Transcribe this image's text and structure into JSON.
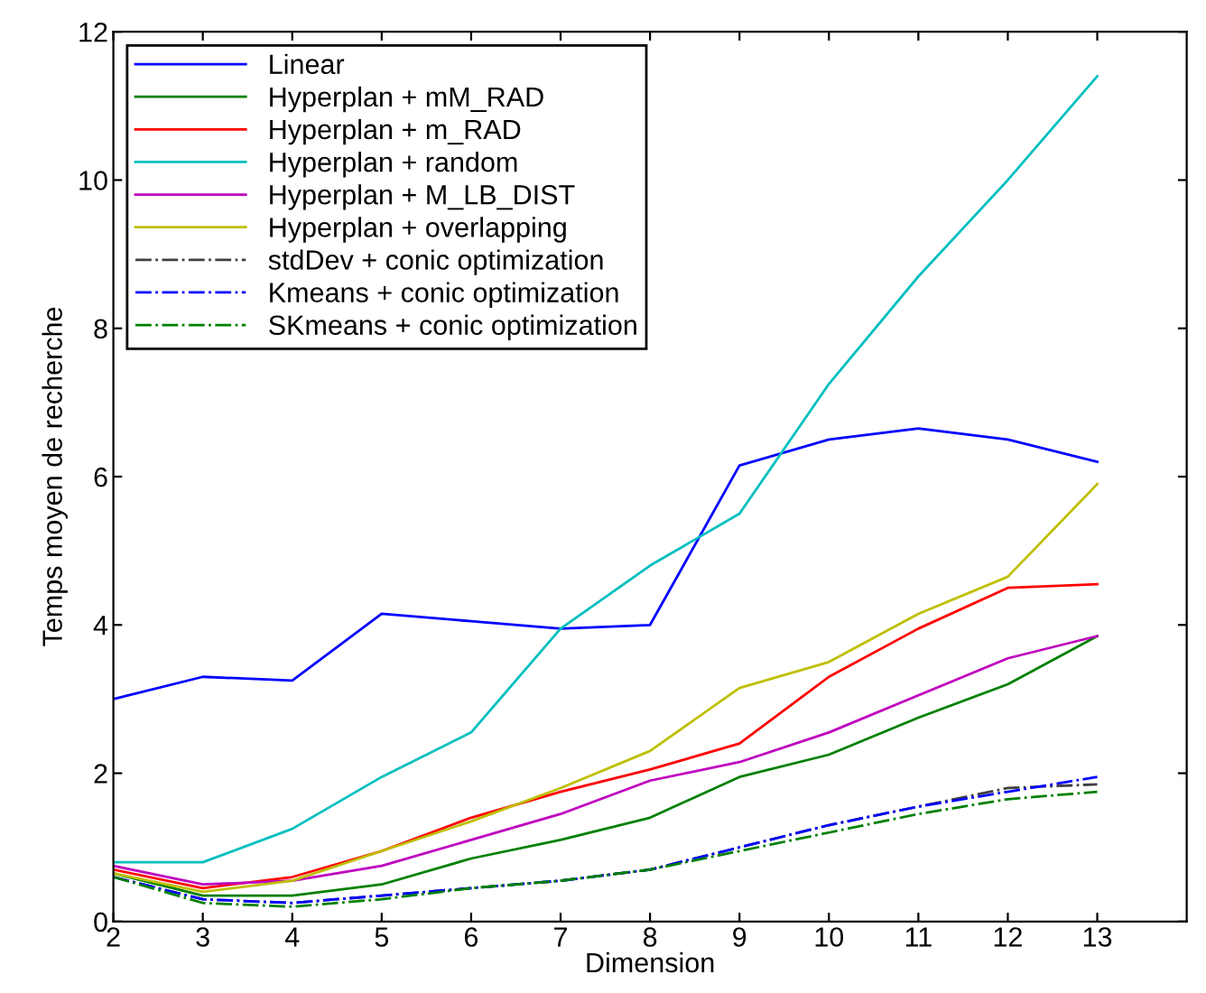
{
  "chart_data": {
    "type": "line",
    "xlabel": "Dimension",
    "ylabel": "Temps moyen de recherche",
    "x": [
      2,
      3,
      4,
      5,
      6,
      7,
      8,
      9,
      10,
      11,
      12,
      13
    ],
    "xlim": [
      2,
      14
    ],
    "xticks": [
      2,
      3,
      4,
      5,
      6,
      7,
      8,
      9,
      10,
      11,
      12,
      13
    ],
    "ylim": [
      0,
      12
    ],
    "yticks": [
      0,
      2,
      4,
      6,
      8,
      10,
      12
    ],
    "grid": false,
    "legend": "top left",
    "marker": "none",
    "series": [
      {
        "name": "Linear",
        "color": "#0000ff",
        "line_style": "solid",
        "values": [
          3.0,
          3.3,
          3.25,
          4.15,
          4.05,
          3.95,
          4.0,
          6.15,
          6.5,
          6.65,
          6.5,
          6.2
        ]
      },
      {
        "name": "Hyperplan + mM_RAD",
        "color": "#008000",
        "line_style": "solid",
        "values": [
          0.65,
          0.35,
          0.35,
          0.5,
          0.85,
          1.1,
          1.4,
          1.95,
          2.25,
          2.75,
          3.2,
          3.85
        ]
      },
      {
        "name": "Hyperplan + m_RAD",
        "color": "#ff0000",
        "line_style": "solid",
        "values": [
          0.7,
          0.45,
          0.6,
          0.95,
          1.4,
          1.75,
          2.05,
          2.4,
          3.3,
          3.95,
          4.5,
          4.55
        ]
      },
      {
        "name": "Hyperplan + random",
        "color": "#00bfbf",
        "line_style": "solid",
        "values": [
          0.8,
          0.8,
          1.25,
          1.95,
          2.55,
          3.95,
          4.8,
          5.5,
          7.25,
          8.7,
          10.0,
          11.4
        ]
      },
      {
        "name": "Hyperplan + M_LB_DIST",
        "color": "#bf00bf",
        "line_style": "solid",
        "values": [
          0.75,
          0.5,
          0.55,
          0.75,
          1.1,
          1.45,
          1.9,
          2.15,
          2.55,
          3.05,
          3.55,
          3.85
        ]
      },
      {
        "name": "Hyperplan + overlapping",
        "color": "#bfbf00",
        "line_style": "solid",
        "values": [
          0.65,
          0.4,
          0.55,
          0.95,
          1.35,
          1.8,
          2.3,
          3.15,
          3.5,
          4.15,
          4.65,
          5.9
        ]
      },
      {
        "name": "stdDev + conic optimization",
        "color": "#404040",
        "line_style": "dashdot",
        "values": [
          0.6,
          0.3,
          0.25,
          0.35,
          0.45,
          0.55,
          0.7,
          1.0,
          1.3,
          1.55,
          1.8,
          1.85
        ]
      },
      {
        "name": "Kmeans + conic optimization",
        "color": "#0000ff",
        "line_style": "dashdot",
        "values": [
          0.6,
          0.3,
          0.25,
          0.35,
          0.45,
          0.55,
          0.7,
          1.0,
          1.3,
          1.55,
          1.75,
          1.95
        ]
      },
      {
        "name": "SKmeans + conic optimization",
        "color": "#008000",
        "line_style": "dashdot",
        "values": [
          0.6,
          0.25,
          0.2,
          0.3,
          0.45,
          0.55,
          0.7,
          0.95,
          1.2,
          1.45,
          1.65,
          1.75
        ]
      }
    ]
  }
}
